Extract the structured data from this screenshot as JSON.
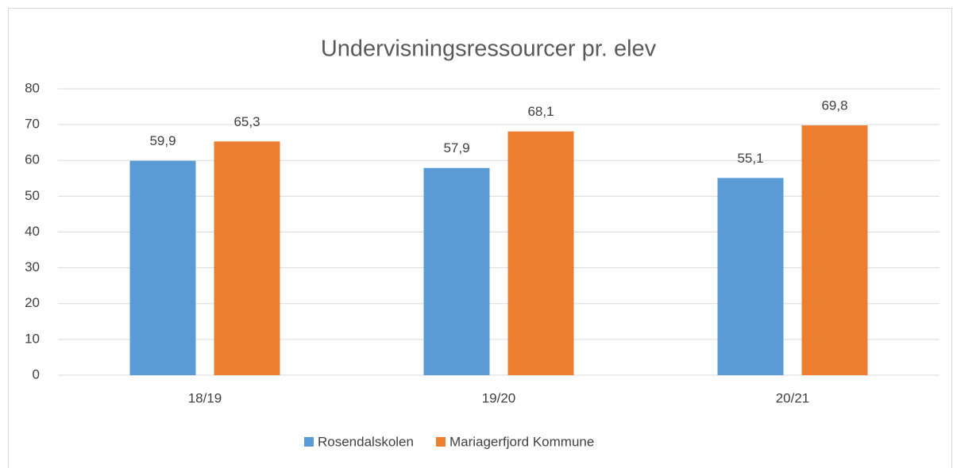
{
  "chart_data": {
    "type": "bar",
    "title": "Undervisningsressourcer pr. elev",
    "categories": [
      "18/19",
      "19/20",
      "20/21"
    ],
    "series": [
      {
        "name": "Rosendalskolen",
        "color": "#5b9bd5",
        "values": [
          59.9,
          57.9,
          55.1
        ],
        "value_labels": [
          "59,9",
          "57,9",
          "55,1"
        ]
      },
      {
        "name": "Mariagerfjord Kommune",
        "color": "#ed7d31",
        "values": [
          65.3,
          68.1,
          69.8
        ],
        "value_labels": [
          "65,3",
          "68,1",
          "69,8"
        ]
      }
    ],
    "ylim": [
      0,
      80
    ],
    "yticks": [
      0,
      10,
      20,
      30,
      40,
      50,
      60,
      70,
      80
    ],
    "grid": true,
    "legend": "bottom"
  }
}
